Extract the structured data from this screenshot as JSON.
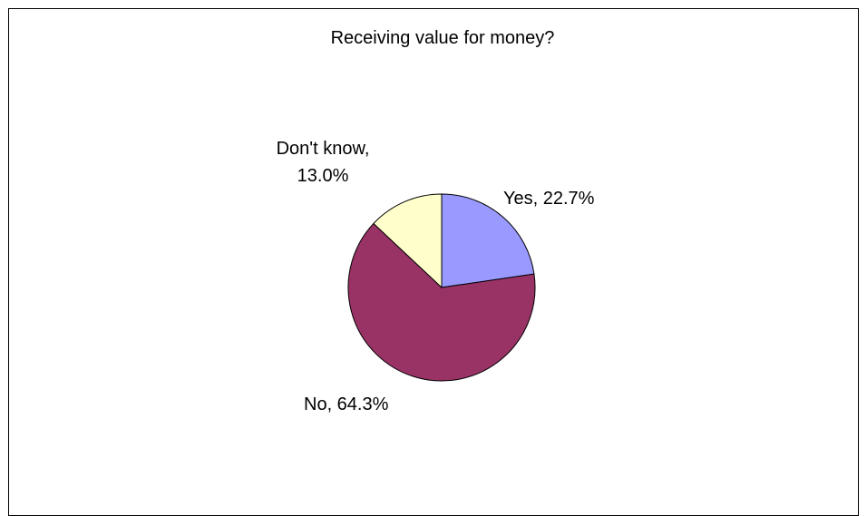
{
  "chart_data": {
    "type": "pie",
    "title": "Receiving value for money?",
    "slices": [
      {
        "name": "Yes",
        "value": 22.7,
        "label": "Yes, 22.7%",
        "color": "#9999ff"
      },
      {
        "name": "No",
        "value": 64.3,
        "label": "No, 64.3%",
        "color": "#993366"
      },
      {
        "name": "Don't know",
        "value": 13.0,
        "label_lines": [
          "Don't know,",
          "13.0%"
        ],
        "color": "#ffffcc"
      }
    ],
    "start_angle_deg": 0,
    "direction": "clockwise",
    "legend": "none"
  }
}
